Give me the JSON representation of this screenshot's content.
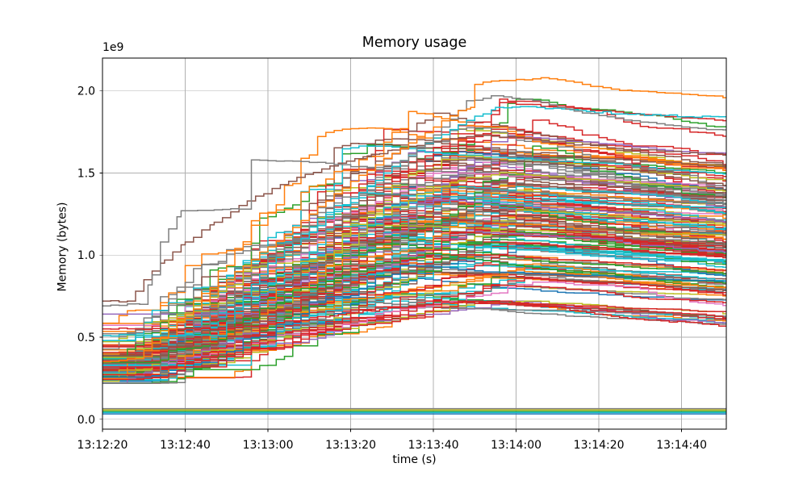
{
  "chart_data": {
    "type": "line",
    "title": "Memory usage",
    "xlabel": "time (s)",
    "ylabel": "Memory (bytes)",
    "y_scale_offset_label": "1e9",
    "y_unit_multiplier": 1000000000,
    "grid": true,
    "grid_color": "#b0b0b0",
    "legend": "none",
    "line_width": 1.5,
    "x_time_origin": "13:12:20",
    "x_tick_labels": [
      "13:12:20",
      "13:12:40",
      "13:13:00",
      "13:13:20",
      "13:13:40",
      "13:14:00",
      "13:14:20",
      "13:14:40"
    ],
    "x_tick_seconds": [
      0,
      20,
      40,
      60,
      80,
      100,
      120,
      140
    ],
    "xlim_seconds": [
      0,
      150.8
    ],
    "y_tick_labels": [
      "0.0",
      "0.5",
      "1.0",
      "1.5",
      "2.0"
    ],
    "y_tick_values": [
      0,
      0.5,
      1.0,
      1.5,
      2.0
    ],
    "ylim": [
      -0.06,
      2.2
    ],
    "palette": {
      "blue": "#1f77b4",
      "orange": "#ff7f0e",
      "green": "#2ca02c",
      "red": "#d62728",
      "purple": "#9467bd",
      "brown": "#8c564b",
      "pink": "#e377c2",
      "gray": "#7f7f7f",
      "olive": "#bcbd22",
      "cyan": "#17becf"
    },
    "summary": {
      "description": "~180 stepwise memory-usage traces rising from ~0.22-0.48e9 bytes at 13:12:20 to a spread of ~0.7-2.08e9 around 13:13:50-13:14:00, then slowly declining; plus a band of flat traces near 0.03-0.07e9.",
      "start_band_1e9": [
        0.23,
        0.48
      ],
      "peak_envelope_1e9": 2.08,
      "right_edge_band_1e9": [
        0.57,
        1.96
      ]
    },
    "anchor_series": [
      {
        "name": "early-brown",
        "color_key": "brown",
        "points_seconds_1e9": [
          [
            0,
            0.72
          ],
          [
            6,
            0.72
          ],
          [
            10,
            0.85
          ],
          [
            15,
            0.97
          ],
          [
            20,
            1.08
          ],
          [
            27,
            1.2
          ],
          [
            35,
            1.33
          ],
          [
            45,
            1.45
          ],
          [
            57,
            1.56
          ],
          [
            70,
            1.64
          ],
          [
            82,
            1.7
          ],
          [
            92,
            1.73
          ],
          [
            102,
            1.71
          ],
          [
            112,
            1.68
          ],
          [
            124,
            1.65
          ],
          [
            136,
            1.63
          ],
          [
            151,
            1.61
          ]
        ]
      },
      {
        "name": "low-red",
        "color_key": "red",
        "points_seconds_1e9": [
          [
            0,
            0.55
          ],
          [
            30,
            0.55
          ],
          [
            40,
            0.58
          ],
          [
            55,
            0.63
          ],
          [
            70,
            0.68
          ],
          [
            85,
            0.71
          ],
          [
            95,
            0.72
          ],
          [
            105,
            0.7
          ],
          [
            115,
            0.66
          ],
          [
            125,
            0.62
          ],
          [
            135,
            0.6
          ],
          [
            145,
            0.58
          ],
          [
            151,
            0.57
          ]
        ]
      },
      {
        "name": "slow-cyan",
        "color_key": "cyan",
        "points_seconds_1e9": [
          [
            0,
            0.51
          ],
          [
            28,
            0.51
          ],
          [
            34,
            0.75
          ],
          [
            40,
            0.95
          ],
          [
            48,
            1.1
          ],
          [
            58,
            1.3
          ],
          [
            68,
            1.5
          ],
          [
            78,
            1.68
          ],
          [
            88,
            1.82
          ],
          [
            95,
            1.9
          ],
          [
            105,
            1.9
          ],
          [
            115,
            1.88
          ],
          [
            125,
            1.86
          ],
          [
            135,
            1.85
          ],
          [
            151,
            1.84
          ]
        ]
      },
      {
        "name": "early-gray",
        "color_key": "gray",
        "points_seconds_1e9": [
          [
            0,
            0.69
          ],
          [
            9,
            0.7
          ],
          [
            12,
            0.88
          ],
          [
            14,
            1.08
          ],
          [
            19,
            1.27
          ],
          [
            34,
            1.28
          ],
          [
            36,
            1.58
          ],
          [
            48,
            1.57
          ],
          [
            58,
            1.55
          ],
          [
            66,
            1.52
          ],
          [
            74,
            1.6
          ],
          [
            82,
            1.78
          ],
          [
            88,
            1.94
          ],
          [
            95,
            1.97
          ],
          [
            102,
            1.95
          ],
          [
            110,
            1.9
          ],
          [
            120,
            1.85
          ],
          [
            130,
            1.81
          ],
          [
            140,
            1.78
          ],
          [
            151,
            1.76
          ]
        ]
      },
      {
        "name": "top-orange",
        "color_key": "orange",
        "points_seconds_1e9": [
          [
            0,
            0.35
          ],
          [
            8,
            0.37
          ],
          [
            16,
            0.55
          ],
          [
            24,
            0.72
          ],
          [
            32,
            0.9
          ],
          [
            40,
            1.05
          ],
          [
            50,
            1.25
          ],
          [
            60,
            1.45
          ],
          [
            70,
            1.62
          ],
          [
            80,
            1.78
          ],
          [
            86,
            1.88
          ],
          [
            89,
            1.9
          ],
          [
            90,
            2.04
          ],
          [
            94,
            2.06
          ],
          [
            100,
            2.07
          ],
          [
            106,
            2.08
          ],
          [
            112,
            2.06
          ],
          [
            116,
            2.04
          ],
          [
            121,
            2.02
          ],
          [
            128,
            2.0
          ],
          [
            134,
            1.99
          ],
          [
            140,
            1.98
          ],
          [
            146,
            1.97
          ],
          [
            151,
            1.96
          ]
        ]
      }
    ],
    "flat_series": [
      {
        "name": "flat-gray",
        "color_key": "gray",
        "value_1e9": 0.065
      },
      {
        "name": "flat-olive",
        "color_key": "olive",
        "value_1e9": 0.057
      },
      {
        "name": "flat-green",
        "color_key": "green",
        "value_1e9": 0.048
      },
      {
        "name": "flat-cyan",
        "color_key": "cyan",
        "value_1e9": 0.041
      },
      {
        "name": "flat-blue",
        "color_key": "blue",
        "value_1e9": 0.033
      }
    ],
    "generated_series": {
      "count": 170,
      "seed": 11,
      "step_seconds": 2,
      "start_value": {
        "mean": 0.32,
        "sd": 0.06,
        "min": 0.22,
        "max": 0.48,
        "outlier_prob": 0.05,
        "outlier_min": 0.48,
        "outlier_max": 0.66
      },
      "rise_start_seconds": {
        "min": 2,
        "max": 16,
        "late_prob": 0.06,
        "late_min": 24,
        "late_max": 38
      },
      "peak_value": {
        "mean": 1.25,
        "sd": 0.33,
        "min": 0.72,
        "max": 1.95
      },
      "peak_time_seconds": {
        "min": 60,
        "max": 108
      },
      "end_fraction_of_peak": {
        "min": 0.8,
        "max": 0.95
      },
      "color_weights": {
        "red": 0.2,
        "orange": 0.16,
        "gray": 0.15,
        "cyan": 0.13,
        "brown": 0.12,
        "green": 0.08,
        "olive": 0.05,
        "purple": 0.04,
        "pink": 0.035,
        "blue": 0.035
      }
    }
  }
}
